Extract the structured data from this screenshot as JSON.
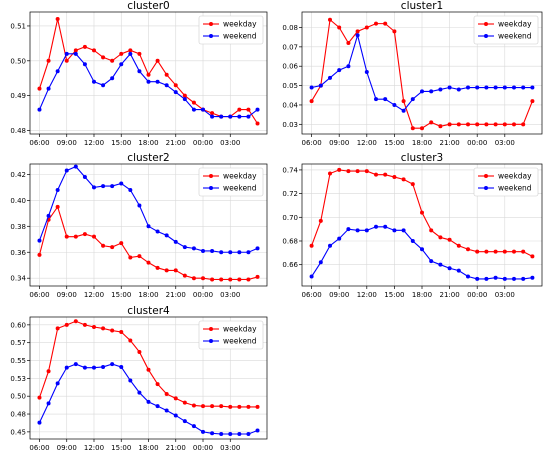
{
  "chart_data": [
    {
      "type": "line",
      "title": "cluster0",
      "x_ticks": [
        "06:00",
        "09:00",
        "12:00",
        "15:00",
        "18:00",
        "21:00",
        "00:00",
        "03:00"
      ],
      "ylim": [
        0.479,
        0.514
      ],
      "y_ticks": [
        0.48,
        0.49,
        0.5,
        0.51
      ],
      "y_tick_labels": [
        "0.48",
        "0.49",
        "0.50",
        "0.51"
      ],
      "grid": true,
      "legend": "top-right",
      "series": [
        {
          "name": "weekday",
          "color": "#ff0000",
          "values": [
            0.492,
            0.5,
            0.512,
            0.5,
            0.503,
            0.504,
            0.503,
            0.501,
            0.5,
            0.502,
            0.503,
            0.502,
            0.496,
            0.5,
            0.496,
            0.493,
            0.49,
            0.488,
            0.486,
            0.485,
            0.484,
            0.484,
            0.486,
            0.486,
            0.482
          ]
        },
        {
          "name": "weekend",
          "color": "#0000ff",
          "values": [
            0.486,
            0.492,
            0.497,
            0.502,
            0.502,
            0.499,
            0.494,
            0.493,
            0.495,
            0.499,
            0.502,
            0.497,
            0.494,
            0.494,
            0.493,
            0.491,
            0.489,
            0.486,
            0.486,
            0.484,
            0.484,
            0.484,
            0.484,
            0.484,
            0.486
          ]
        }
      ]
    },
    {
      "type": "line",
      "title": "cluster1",
      "x_ticks": [
        "06:00",
        "09:00",
        "12:00",
        "15:00",
        "18:00",
        "21:00",
        "00:00",
        "03:00"
      ],
      "ylim": [
        0.025,
        0.088
      ],
      "y_ticks": [
        0.03,
        0.04,
        0.05,
        0.06,
        0.07,
        0.08
      ],
      "y_tick_labels": [
        "0.03",
        "0.04",
        "0.05",
        "0.06",
        "0.07",
        "0.08"
      ],
      "grid": true,
      "legend": "top-right",
      "series": [
        {
          "name": "weekday",
          "color": "#ff0000",
          "values": [
            0.042,
            0.05,
            0.084,
            0.08,
            0.072,
            0.078,
            0.08,
            0.082,
            0.082,
            0.078,
            0.042,
            0.028,
            0.028,
            0.031,
            0.029,
            0.03,
            0.03,
            0.03,
            0.03,
            0.03,
            0.03,
            0.03,
            0.03,
            0.03,
            0.042
          ]
        },
        {
          "name": "weekend",
          "color": "#0000ff",
          "values": [
            0.049,
            0.05,
            0.054,
            0.058,
            0.06,
            0.076,
            0.057,
            0.043,
            0.043,
            0.04,
            0.037,
            0.043,
            0.047,
            0.047,
            0.048,
            0.049,
            0.048,
            0.049,
            0.049,
            0.049,
            0.049,
            0.049,
            0.049,
            0.049,
            0.049
          ]
        }
      ]
    },
    {
      "type": "line",
      "title": "cluster2",
      "x_ticks": [
        "06:00",
        "09:00",
        "12:00",
        "15:00",
        "18:00",
        "21:00",
        "00:00",
        "03:00"
      ],
      "ylim": [
        0.334,
        0.428
      ],
      "y_ticks": [
        0.34,
        0.36,
        0.38,
        0.4,
        0.42
      ],
      "y_tick_labels": [
        "0.34",
        "0.36",
        "0.38",
        "0.40",
        "0.42"
      ],
      "grid": true,
      "legend": "top-right",
      "series": [
        {
          "name": "weekday",
          "color": "#ff0000",
          "values": [
            0.358,
            0.385,
            0.395,
            0.372,
            0.372,
            0.374,
            0.372,
            0.365,
            0.364,
            0.367,
            0.356,
            0.357,
            0.352,
            0.348,
            0.346,
            0.346,
            0.342,
            0.34,
            0.34,
            0.339,
            0.339,
            0.339,
            0.339,
            0.339,
            0.341
          ]
        },
        {
          "name": "weekend",
          "color": "#0000ff",
          "values": [
            0.369,
            0.388,
            0.408,
            0.423,
            0.426,
            0.418,
            0.41,
            0.411,
            0.411,
            0.413,
            0.408,
            0.396,
            0.38,
            0.376,
            0.373,
            0.368,
            0.364,
            0.363,
            0.361,
            0.361,
            0.36,
            0.36,
            0.36,
            0.36,
            0.363
          ]
        }
      ]
    },
    {
      "type": "line",
      "title": "cluster3",
      "x_ticks": [
        "06:00",
        "09:00",
        "12:00",
        "15:00",
        "18:00",
        "21:00",
        "00:00",
        "03:00"
      ],
      "ylim": [
        0.642,
        0.745
      ],
      "y_ticks": [
        0.66,
        0.68,
        0.7,
        0.72,
        0.74
      ],
      "y_tick_labels": [
        "0.66",
        "0.68",
        "0.70",
        "0.72",
        "0.74"
      ],
      "grid": true,
      "legend": "top-right",
      "series": [
        {
          "name": "weekday",
          "color": "#ff0000",
          "values": [
            0.676,
            0.697,
            0.737,
            0.74,
            0.739,
            0.739,
            0.739,
            0.736,
            0.736,
            0.734,
            0.732,
            0.728,
            0.704,
            0.689,
            0.683,
            0.681,
            0.676,
            0.673,
            0.671,
            0.671,
            0.671,
            0.671,
            0.671,
            0.671,
            0.667
          ]
        },
        {
          "name": "weekend",
          "color": "#0000ff",
          "values": [
            0.65,
            0.662,
            0.676,
            0.682,
            0.69,
            0.689,
            0.689,
            0.692,
            0.692,
            0.689,
            0.689,
            0.68,
            0.673,
            0.663,
            0.66,
            0.657,
            0.655,
            0.65,
            0.648,
            0.648,
            0.649,
            0.648,
            0.648,
            0.648,
            0.649
          ]
        }
      ]
    },
    {
      "type": "line",
      "title": "cluster4",
      "x_ticks": [
        "06:00",
        "09:00",
        "12:00",
        "15:00",
        "18:00",
        "21:00",
        "00:00",
        "03:00"
      ],
      "ylim": [
        0.44,
        0.611
      ],
      "y_ticks": [
        0.45,
        0.475,
        0.5,
        0.525,
        0.55,
        0.575,
        0.6
      ],
      "y_tick_labels": [
        "0.45",
        "0.48",
        "0.50",
        "0.53",
        "0.55",
        "0.57",
        "0.60"
      ],
      "grid": true,
      "legend": "top-right",
      "series": [
        {
          "name": "weekday",
          "color": "#ff0000",
          "values": [
            0.498,
            0.535,
            0.595,
            0.6,
            0.605,
            0.6,
            0.597,
            0.595,
            0.592,
            0.59,
            0.578,
            0.562,
            0.537,
            0.517,
            0.503,
            0.497,
            0.491,
            0.487,
            0.486,
            0.486,
            0.486,
            0.485,
            0.485,
            0.485,
            0.485
          ]
        },
        {
          "name": "weekend",
          "color": "#0000ff",
          "values": [
            0.463,
            0.49,
            0.518,
            0.54,
            0.545,
            0.54,
            0.54,
            0.541,
            0.545,
            0.541,
            0.522,
            0.505,
            0.492,
            0.486,
            0.48,
            0.473,
            0.465,
            0.458,
            0.45,
            0.448,
            0.447,
            0.447,
            0.447,
            0.447,
            0.452
          ]
        }
      ]
    }
  ]
}
